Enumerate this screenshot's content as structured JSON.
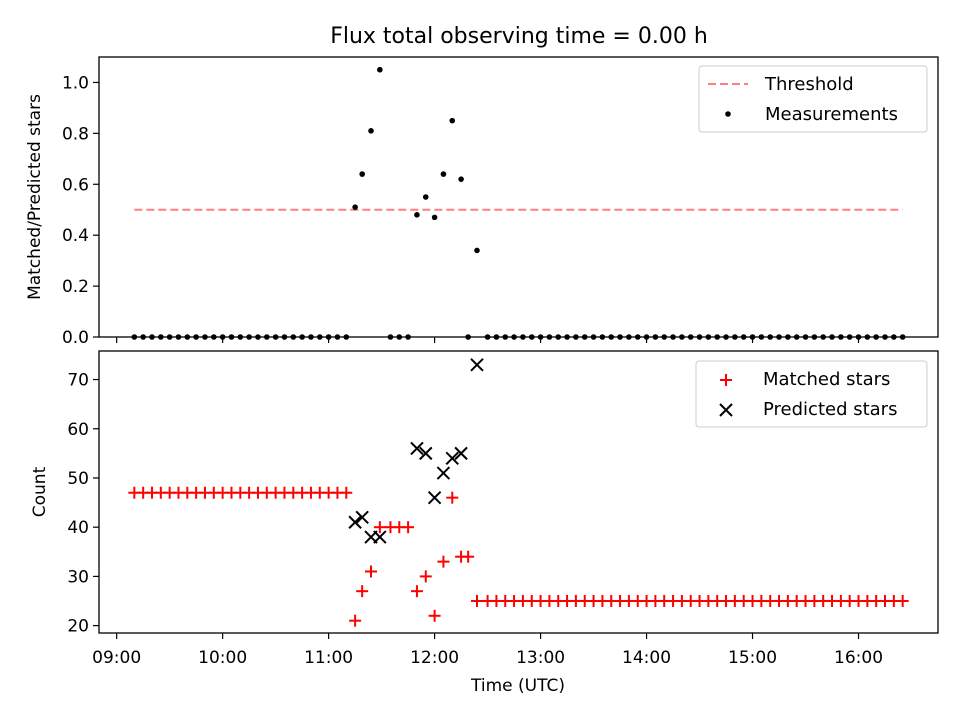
{
  "figure": {
    "title": "Flux total observing time = 0.00 h"
  },
  "chart_data": [
    {
      "type": "scatter",
      "panel": "top",
      "ylabel": "Matched/Predicted stars",
      "xlabel": "",
      "ylim": [
        0,
        1.1
      ],
      "y_ticks": [
        "0.0",
        "0.2",
        "0.4",
        "0.6",
        "0.8",
        "1.0"
      ],
      "legend_placement": "top-right",
      "legend": [
        "Threshold",
        "Measurements"
      ],
      "threshold": {
        "name": "Threshold",
        "y": 0.5,
        "x_start": "09:10",
        "x_end": "16:25",
        "color": "#ff7f7f",
        "style": "dashed"
      },
      "series": [
        {
          "name": "Measurements",
          "color": "#000000",
          "points": [
            [
              "09:10",
              0
            ],
            [
              "09:15",
              0
            ],
            [
              "09:20",
              0
            ],
            [
              "09:25",
              0
            ],
            [
              "09:30",
              0
            ],
            [
              "09:35",
              0
            ],
            [
              "09:40",
              0
            ],
            [
              "09:45",
              0
            ],
            [
              "09:50",
              0
            ],
            [
              "09:55",
              0
            ],
            [
              "10:00",
              0
            ],
            [
              "10:05",
              0
            ],
            [
              "10:10",
              0
            ],
            [
              "10:15",
              0
            ],
            [
              "10:20",
              0
            ],
            [
              "10:25",
              0
            ],
            [
              "10:30",
              0
            ],
            [
              "10:35",
              0
            ],
            [
              "10:40",
              0
            ],
            [
              "10:45",
              0
            ],
            [
              "10:50",
              0
            ],
            [
              "10:55",
              0
            ],
            [
              "11:00",
              0
            ],
            [
              "11:05",
              0
            ],
            [
              "11:10",
              0
            ],
            [
              "11:15",
              0.51
            ],
            [
              "11:19",
              0.64
            ],
            [
              "11:24",
              0.81
            ],
            [
              "11:29",
              1.05
            ],
            [
              "11:35",
              0
            ],
            [
              "11:40",
              0
            ],
            [
              "11:45",
              0
            ],
            [
              "11:50",
              0.48
            ],
            [
              "11:55",
              0.55
            ],
            [
              "12:00",
              0.47
            ],
            [
              "12:05",
              0.64
            ],
            [
              "12:10",
              0.85
            ],
            [
              "12:15",
              0.62
            ],
            [
              "12:19",
              0
            ],
            [
              "12:24",
              0.34
            ],
            [
              "12:30",
              0
            ],
            [
              "12:35",
              0
            ],
            [
              "12:40",
              0
            ],
            [
              "12:45",
              0
            ],
            [
              "12:50",
              0
            ],
            [
              "12:55",
              0
            ],
            [
              "13:00",
              0
            ],
            [
              "13:05",
              0
            ],
            [
              "13:10",
              0
            ],
            [
              "13:15",
              0
            ],
            [
              "13:20",
              0
            ],
            [
              "13:25",
              0
            ],
            [
              "13:30",
              0
            ],
            [
              "13:35",
              0
            ],
            [
              "13:40",
              0
            ],
            [
              "13:45",
              0
            ],
            [
              "13:50",
              0
            ],
            [
              "13:55",
              0
            ],
            [
              "14:00",
              0
            ],
            [
              "14:05",
              0
            ],
            [
              "14:10",
              0
            ],
            [
              "14:15",
              0
            ],
            [
              "14:20",
              0
            ],
            [
              "14:25",
              0
            ],
            [
              "14:30",
              0
            ],
            [
              "14:35",
              0
            ],
            [
              "14:40",
              0
            ],
            [
              "14:45",
              0
            ],
            [
              "14:50",
              0
            ],
            [
              "14:55",
              0
            ],
            [
              "15:00",
              0
            ],
            [
              "15:05",
              0
            ],
            [
              "15:10",
              0
            ],
            [
              "15:15",
              0
            ],
            [
              "15:20",
              0
            ],
            [
              "15:25",
              0
            ],
            [
              "15:30",
              0
            ],
            [
              "15:35",
              0
            ],
            [
              "15:40",
              0
            ],
            [
              "15:45",
              0
            ],
            [
              "15:50",
              0
            ],
            [
              "15:55",
              0
            ],
            [
              "16:00",
              0
            ],
            [
              "16:05",
              0
            ],
            [
              "16:10",
              0
            ],
            [
              "16:15",
              0
            ],
            [
              "16:20",
              0
            ],
            [
              "16:25",
              0
            ]
          ]
        }
      ]
    },
    {
      "type": "scatter",
      "panel": "bottom",
      "ylabel": "Count",
      "xlabel": "Time (UTC)",
      "xlim": [
        "08:50",
        "16:45"
      ],
      "x_ticks": [
        "09:00",
        "10:00",
        "11:00",
        "12:00",
        "13:00",
        "14:00",
        "15:00",
        "16:00"
      ],
      "ylim": [
        18.5,
        75.8
      ],
      "y_ticks": [
        "20",
        "30",
        "40",
        "50",
        "60",
        "70"
      ],
      "legend_placement": "top-right",
      "legend": [
        "Matched stars",
        "Predicted stars"
      ],
      "series": [
        {
          "name": "Matched stars",
          "marker": "+",
          "color": "#ff0000",
          "points": [
            [
              "09:10",
              47
            ],
            [
              "09:15",
              47
            ],
            [
              "09:20",
              47
            ],
            [
              "09:25",
              47
            ],
            [
              "09:30",
              47
            ],
            [
              "09:35",
              47
            ],
            [
              "09:40",
              47
            ],
            [
              "09:45",
              47
            ],
            [
              "09:50",
              47
            ],
            [
              "09:55",
              47
            ],
            [
              "10:00",
              47
            ],
            [
              "10:05",
              47
            ],
            [
              "10:10",
              47
            ],
            [
              "10:15",
              47
            ],
            [
              "10:20",
              47
            ],
            [
              "10:25",
              47
            ],
            [
              "10:30",
              47
            ],
            [
              "10:35",
              47
            ],
            [
              "10:40",
              47
            ],
            [
              "10:45",
              47
            ],
            [
              "10:50",
              47
            ],
            [
              "10:55",
              47
            ],
            [
              "11:00",
              47
            ],
            [
              "11:05",
              47
            ],
            [
              "11:10",
              47
            ],
            [
              "11:15",
              21
            ],
            [
              "11:19",
              27
            ],
            [
              "11:24",
              31
            ],
            [
              "11:29",
              40
            ],
            [
              "11:35",
              40
            ],
            [
              "11:40",
              40
            ],
            [
              "11:45",
              40
            ],
            [
              "11:50",
              27
            ],
            [
              "11:55",
              30
            ],
            [
              "12:00",
              22
            ],
            [
              "12:05",
              33
            ],
            [
              "12:10",
              46
            ],
            [
              "12:15",
              34
            ],
            [
              "12:19",
              34
            ],
            [
              "12:24",
              25
            ],
            [
              "12:30",
              25
            ],
            [
              "12:35",
              25
            ],
            [
              "12:40",
              25
            ],
            [
              "12:45",
              25
            ],
            [
              "12:50",
              25
            ],
            [
              "12:55",
              25
            ],
            [
              "13:00",
              25
            ],
            [
              "13:05",
              25
            ],
            [
              "13:10",
              25
            ],
            [
              "13:15",
              25
            ],
            [
              "13:20",
              25
            ],
            [
              "13:25",
              25
            ],
            [
              "13:30",
              25
            ],
            [
              "13:35",
              25
            ],
            [
              "13:40",
              25
            ],
            [
              "13:45",
              25
            ],
            [
              "13:50",
              25
            ],
            [
              "13:55",
              25
            ],
            [
              "14:00",
              25
            ],
            [
              "14:05",
              25
            ],
            [
              "14:10",
              25
            ],
            [
              "14:15",
              25
            ],
            [
              "14:20",
              25
            ],
            [
              "14:25",
              25
            ],
            [
              "14:30",
              25
            ],
            [
              "14:35",
              25
            ],
            [
              "14:40",
              25
            ],
            [
              "14:45",
              25
            ],
            [
              "14:50",
              25
            ],
            [
              "14:55",
              25
            ],
            [
              "15:00",
              25
            ],
            [
              "15:05",
              25
            ],
            [
              "15:10",
              25
            ],
            [
              "15:15",
              25
            ],
            [
              "15:20",
              25
            ],
            [
              "15:25",
              25
            ],
            [
              "15:30",
              25
            ],
            [
              "15:35",
              25
            ],
            [
              "15:40",
              25
            ],
            [
              "15:45",
              25
            ],
            [
              "15:50",
              25
            ],
            [
              "15:55",
              25
            ],
            [
              "16:00",
              25
            ],
            [
              "16:05",
              25
            ],
            [
              "16:10",
              25
            ],
            [
              "16:15",
              25
            ],
            [
              "16:20",
              25
            ],
            [
              "16:25",
              25
            ]
          ]
        },
        {
          "name": "Predicted stars",
          "marker": "x",
          "color": "#000000",
          "points": [
            [
              "11:15",
              41
            ],
            [
              "11:19",
              42
            ],
            [
              "11:24",
              38
            ],
            [
              "11:29",
              38
            ],
            [
              "11:50",
              56
            ],
            [
              "11:55",
              55
            ],
            [
              "12:00",
              46
            ],
            [
              "12:05",
              51
            ],
            [
              "12:10",
              54
            ],
            [
              "12:15",
              55
            ],
            [
              "12:24",
              73
            ]
          ]
        }
      ]
    }
  ]
}
